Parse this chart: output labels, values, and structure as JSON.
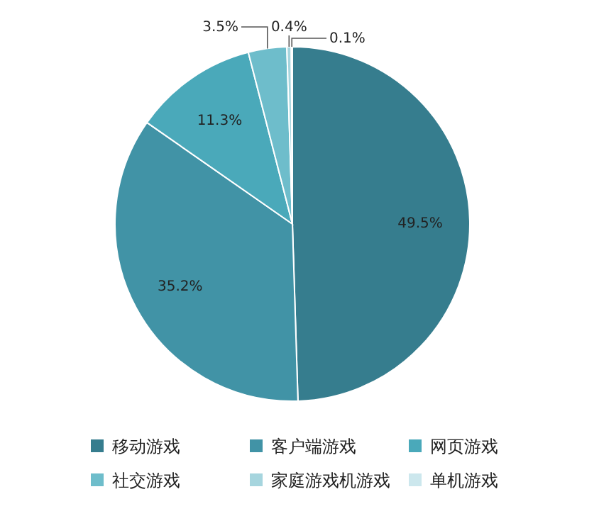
{
  "chart_data": {
    "type": "pie",
    "categories": [
      "移动游戏",
      "客户端游戏",
      "网页游戏",
      "社交游戏",
      "家庭游戏机游戏",
      "单机游戏"
    ],
    "values": [
      49.5,
      35.2,
      11.3,
      3.5,
      0.4,
      0.1
    ],
    "value_labels": [
      "49.5%",
      "35.2%",
      "11.3%",
      "3.5%",
      "0.4%",
      "0.1%"
    ],
    "colors": [
      "#367d8e",
      "#4193a6",
      "#4aa9ba",
      "#6ebdcb",
      "#a6d5de",
      "#cce7ed"
    ],
    "legend": "bottom"
  }
}
